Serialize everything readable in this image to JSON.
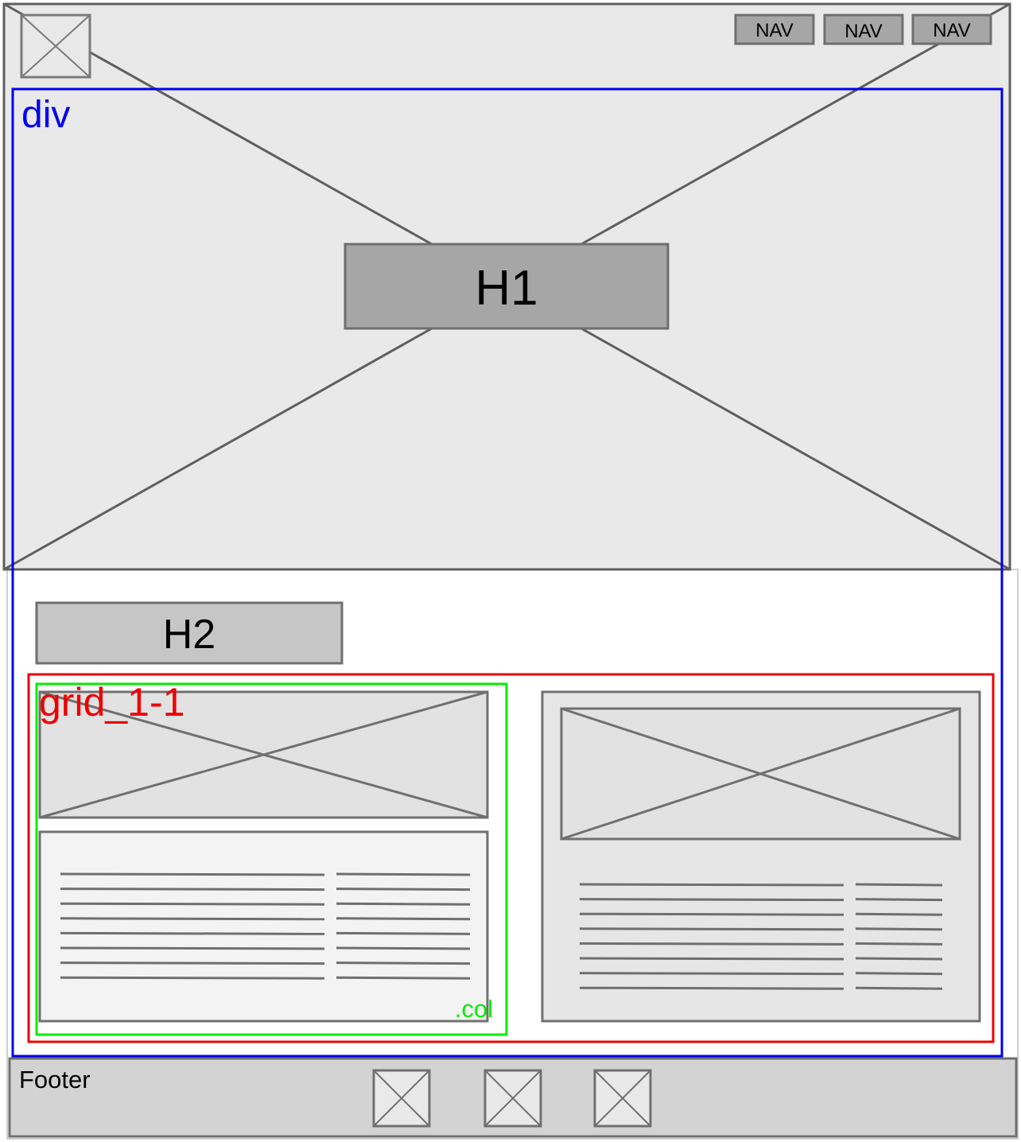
{
  "header": {
    "nav": [
      {
        "label": "NAV"
      },
      {
        "label": "NAV"
      },
      {
        "label": "NAV"
      }
    ]
  },
  "hero": {
    "title": "H1"
  },
  "section": {
    "title": "H2"
  },
  "annotations": {
    "div_label": "div",
    "grid_label": "grid_1-1",
    "col_label": ".col"
  },
  "footer": {
    "label": "Footer"
  },
  "colors": {
    "canvas_bg": "#e9e9e9",
    "stroke": "#5f5f5f",
    "div_annotation": "#0000ee",
    "grid_annotation": "#ee0000",
    "col_annotation": "#00ee00"
  }
}
